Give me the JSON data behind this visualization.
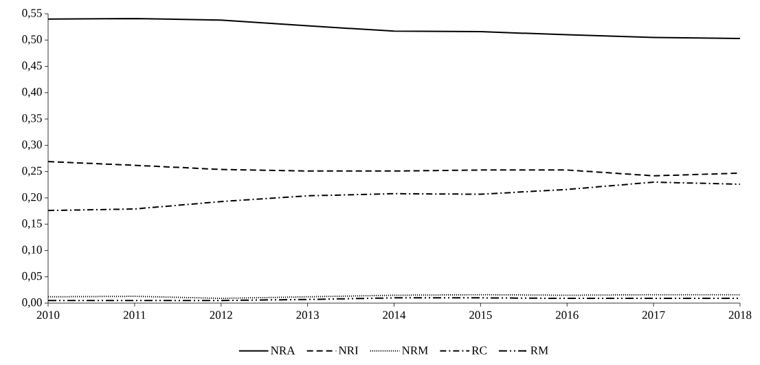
{
  "chart_data": {
    "type": "line",
    "x": [
      2010,
      2011,
      2012,
      2013,
      2014,
      2015,
      2016,
      2017,
      2018
    ],
    "xlim": [
      2010,
      2018
    ],
    "xticks": [
      2010,
      2011,
      2012,
      2013,
      2014,
      2015,
      2016,
      2017,
      2018
    ],
    "ylim": [
      0,
      0.55
    ],
    "yticks": [
      {
        "value": 0,
        "label": "0,00"
      },
      {
        "value": 0.05,
        "label": "0,05"
      },
      {
        "value": 0.1,
        "label": "0,10"
      },
      {
        "value": 0.15,
        "label": "0,15"
      },
      {
        "value": 0.2,
        "label": "0,20"
      },
      {
        "value": 0.25,
        "label": "0,25"
      },
      {
        "value": 0.3,
        "label": "0,30"
      },
      {
        "value": 0.35,
        "label": "0,35"
      },
      {
        "value": 0.4,
        "label": "0,40"
      },
      {
        "value": 0.45,
        "label": "0,45"
      },
      {
        "value": 0.5,
        "label": "0,50"
      },
      {
        "value": 0.55,
        "label": "0,55"
      }
    ],
    "legend": "bottom",
    "grid": false,
    "marker": "none",
    "series": [
      {
        "name": "NRA",
        "color": "#000000",
        "line_style": "solid",
        "values": [
          0.54,
          0.541,
          0.538,
          0.527,
          0.517,
          0.516,
          0.51,
          0.505,
          0.503
        ]
      },
      {
        "name": "NRI",
        "color": "#000000",
        "line_style": "dashed",
        "values": [
          0.269,
          0.262,
          0.254,
          0.251,
          0.251,
          0.253,
          0.253,
          0.242,
          0.247
        ]
      },
      {
        "name": "NRM",
        "color": "#000000",
        "line_style": "dotted",
        "values": [
          0.012,
          0.013,
          0.009,
          0.012,
          0.015,
          0.016,
          0.015,
          0.016,
          0.016
        ]
      },
      {
        "name": "RC",
        "color": "#000000",
        "line_style": "dashdot",
        "values": [
          0.176,
          0.179,
          0.193,
          0.204,
          0.208,
          0.207,
          0.216,
          0.23,
          0.226
        ]
      },
      {
        "name": "RM",
        "color": "#000000",
        "line_style": "dashdotdot",
        "values": [
          0.005,
          0.005,
          0.005,
          0.007,
          0.01,
          0.01,
          0.009,
          0.009,
          0.009
        ]
      }
    ]
  }
}
